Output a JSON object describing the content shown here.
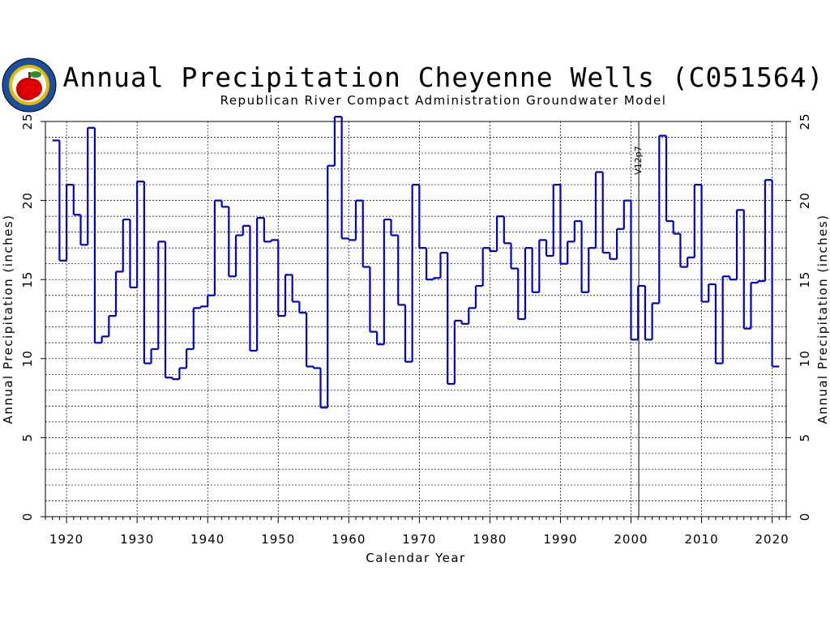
{
  "chart_data": {
    "type": "line",
    "style": "step",
    "title": "Annual Precipitation Cheyenne Wells (C051564)",
    "subtitle": "Republican River Compact Administration Groundwater Model",
    "xlabel": "Calendar Year",
    "ylabel_left": "Annual Precipitation (inches)",
    "ylabel_right": "Annual Precipitation (inches)",
    "xlim": [
      1917,
      2022
    ],
    "ylim": [
      0,
      25
    ],
    "x_ticks": [
      1920,
      1930,
      1940,
      1950,
      1960,
      1970,
      1980,
      1990,
      2000,
      2010,
      2020
    ],
    "y_ticks": [
      0,
      5,
      10,
      15,
      20,
      25
    ],
    "grid": true,
    "annotation": {
      "text": "V12p7",
      "x": 2001
    },
    "series_color": "#0000cc",
    "series": [
      {
        "x": [
          1918,
          1919,
          1920,
          1921,
          1922,
          1923,
          1924,
          1925,
          1926,
          1927,
          1928,
          1929,
          1930,
          1931,
          1932,
          1933,
          1934,
          1935,
          1936,
          1937,
          1938,
          1939,
          1940,
          1941,
          1942,
          1943,
          1944,
          1945,
          1946,
          1947,
          1948,
          1949,
          1950,
          1951,
          1952,
          1953,
          1954,
          1955,
          1956,
          1957,
          1958,
          1959,
          1960,
          1961,
          1962,
          1963,
          1964,
          1965,
          1966,
          1967,
          1968,
          1969,
          1970,
          1971,
          1972,
          1973,
          1974,
          1975,
          1976,
          1977,
          1978,
          1979,
          1980,
          1981,
          1982,
          1983,
          1984,
          1985,
          1986,
          1987,
          1988,
          1989,
          1990,
          1991,
          1992,
          1993,
          1994,
          1995,
          1996,
          1997,
          1998,
          1999,
          2000,
          2001,
          2002,
          2003,
          2004,
          2005,
          2006,
          2007,
          2008,
          2009,
          2010,
          2011,
          2012,
          2013,
          2014,
          2015,
          2016,
          2017,
          2018,
          2019,
          2020
        ],
        "values": [
          23.8,
          16.2,
          21.0,
          19.1,
          17.2,
          24.6,
          11.0,
          11.4,
          12.7,
          15.5,
          18.8,
          14.5,
          21.2,
          9.7,
          10.6,
          17.4,
          8.8,
          8.7,
          9.4,
          10.6,
          13.2,
          13.3,
          14.0,
          20.0,
          19.6,
          15.2,
          17.8,
          18.4,
          10.5,
          18.9,
          17.4,
          17.5,
          12.7,
          15.3,
          13.6,
          12.9,
          9.5,
          9.4,
          6.9,
          22.2,
          25.3,
          17.6,
          17.5,
          20.0,
          15.8,
          11.7,
          10.9,
          18.8,
          17.8,
          13.4,
          9.8,
          21.0,
          17.0,
          15.0,
          15.1,
          16.7,
          8.4,
          12.4,
          12.2,
          13.2,
          14.6,
          17.0,
          16.8,
          19.0,
          17.3,
          15.7,
          12.5,
          17.0,
          14.2,
          17.5,
          16.5,
          21.0,
          16.0,
          17.4,
          18.7,
          14.2,
          17.0,
          21.8,
          16.7,
          16.3,
          18.2,
          20.0,
          11.2,
          14.6,
          11.2,
          13.5,
          24.1,
          18.7,
          17.9,
          15.8,
          16.4,
          21.0,
          13.6,
          14.7,
          9.7,
          15.2,
          15.0,
          19.4,
          11.9,
          14.8,
          14.9,
          21.3,
          9.5
        ]
      }
    ]
  }
}
